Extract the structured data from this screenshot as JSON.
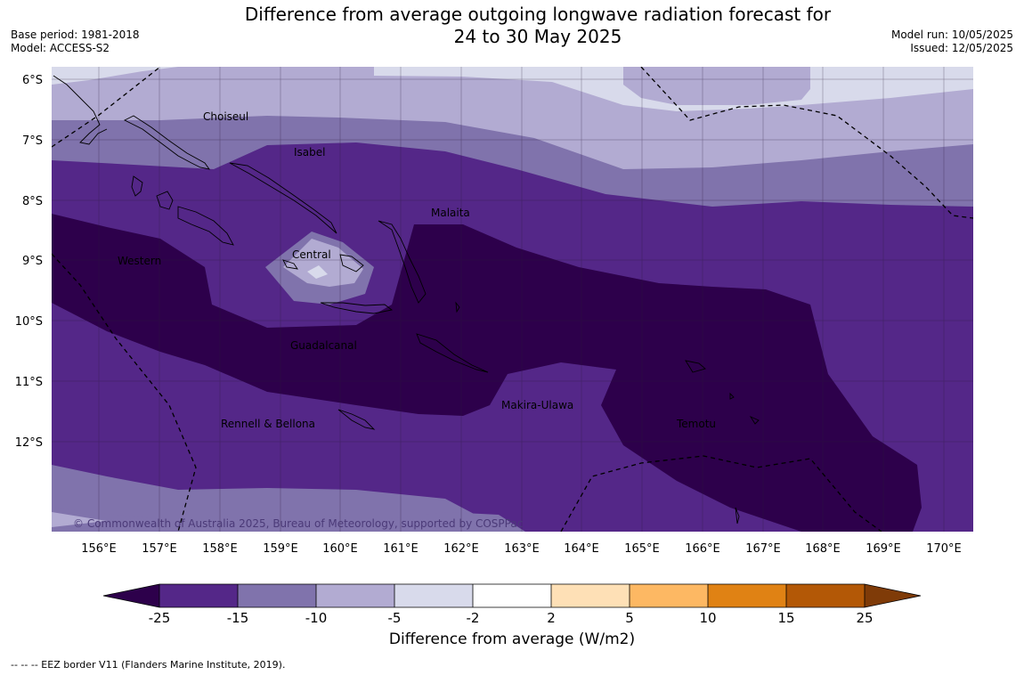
{
  "header": {
    "title_line1": "Difference from average outgoing longwave radiation forecast for",
    "title_line2": "24 to 30 May 2025",
    "base_period": "Base period: 1981-2018",
    "model": "Model: ACCESS-S2",
    "model_run": "Model run: 10/05/2025",
    "issued": "Issued: 12/05/2025"
  },
  "map": {
    "lat_labels": [
      "6°S",
      "7°S",
      "8°S",
      "9°S",
      "10°S",
      "11°S",
      "12°S"
    ],
    "lon_labels": [
      "156°E",
      "157°E",
      "158°E",
      "159°E",
      "160°E",
      "161°E",
      "162°E",
      "163°E",
      "164°E",
      "165°E",
      "166°E",
      "167°E",
      "168°E",
      "169°E",
      "170°E"
    ],
    "province_labels": {
      "choiseul": "Choiseul",
      "isabel": "Isabel",
      "malaita": "Malaita",
      "central": "Central",
      "western": "Western",
      "guadalcanal": "Guadalcanal",
      "makira": "Makira-Ulawa",
      "rennell": "Rennell & Bellona",
      "temotu": "Temotu"
    },
    "copyright": "© Commonwealth of Australia 2025, Bureau of Meteorology, supported by COSPPac"
  },
  "colorbar": {
    "title": "Difference from average (W/m2)",
    "ticks": [
      "-25",
      "-15",
      "-10",
      "-5",
      "-2",
      "2",
      "5",
      "10",
      "15",
      "25"
    ],
    "colors": {
      "below_min": "#2d004b",
      "c1": "#542788",
      "c2": "#8073ac",
      "c3": "#b2abd2",
      "c4": "#d8daeb",
      "c5": "#ffffff",
      "c6": "#fee0b6",
      "c7": "#fdb863",
      "c8": "#e08214",
      "c9": "#b35806",
      "above_max": "#7f3b08"
    }
  },
  "footnote": "--  --  -- EEZ border V11 (Flanders Marine Institute, 2019)."
}
